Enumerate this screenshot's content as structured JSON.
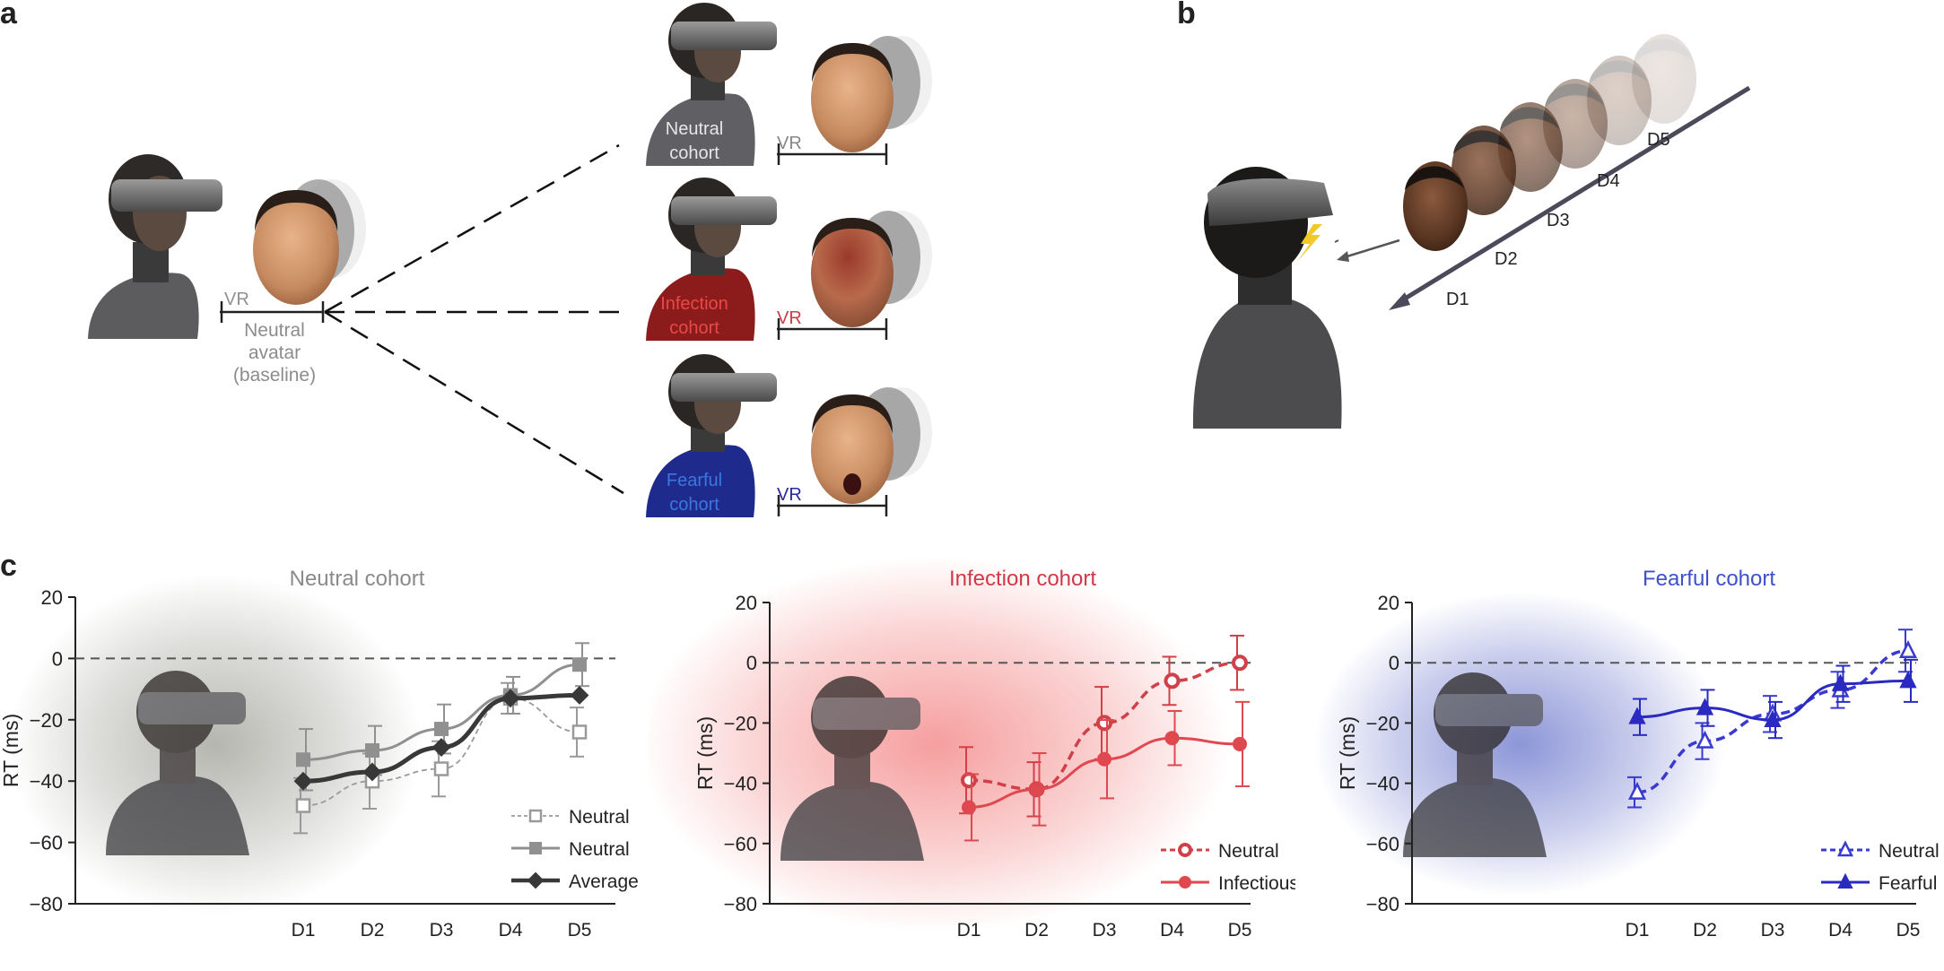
{
  "panels": {
    "a": "a",
    "b": "b",
    "c": "c"
  },
  "panel_a": {
    "baseline_vr": "VR",
    "baseline_caption": [
      "Neutral",
      "avatar",
      "(baseline)"
    ],
    "cohorts": [
      {
        "label": [
          "Neutral",
          "cohort"
        ],
        "vr": "VR",
        "shirt": "#606064",
        "label_color": "#e6e6e6",
        "vr_color": "#888888",
        "face": "neutral"
      },
      {
        "label": [
          "Infection",
          "cohort"
        ],
        "vr": "VR",
        "shirt": "#8c1c1c",
        "label_color": "#e94848",
        "vr_color": "#c8404a",
        "face": "infected"
      },
      {
        "label": [
          "Fearful",
          "cohort"
        ],
        "vr": "VR",
        "shirt": "#1e2a8c",
        "label_color": "#3a78e0",
        "vr_color": "#2a2a9a",
        "face": "fearful"
      }
    ]
  },
  "panel_b": {
    "days": [
      "D1",
      "D2",
      "D3",
      "D4",
      "D5"
    ]
  },
  "chart_data": [
    {
      "type": "line",
      "title": "Neutral cohort",
      "title_color": "#8a8a8a",
      "ylabel": "RT (ms)",
      "ylim": [
        -80,
        20
      ],
      "yticks": [
        20,
        0,
        -20,
        -40,
        -60,
        -80
      ],
      "categories": [
        "D1",
        "D2",
        "D3",
        "D4",
        "D5"
      ],
      "glow_color": "#7a7a70",
      "legend_position": "bottom-right",
      "series": [
        {
          "name": "Neutral",
          "marker": "square-open",
          "style": "dashed-thin",
          "color": "#9a9a9a",
          "values": [
            -48,
            -40,
            -36,
            -13,
            -24
          ],
          "err": [
            9,
            9,
            9,
            5,
            8
          ]
        },
        {
          "name": "Neutral",
          "marker": "square-filled",
          "style": "solid",
          "color": "#909090",
          "values": [
            -33,
            -30,
            -23,
            -12,
            -2
          ],
          "err": [
            10,
            8,
            8,
            6,
            7
          ]
        },
        {
          "name": "Average",
          "marker": "diamond-filled",
          "style": "bold",
          "color": "#383838",
          "values": [
            -40,
            -37,
            -29,
            -13,
            -12
          ],
          "err": [
            0,
            0,
            0,
            0,
            0
          ]
        }
      ]
    },
    {
      "type": "line",
      "title": "Infection cohort",
      "title_color": "#d03a48",
      "ylabel": "RT (ms)",
      "ylim": [
        -80,
        20
      ],
      "yticks": [
        20,
        0,
        -20,
        -40,
        -60,
        -80
      ],
      "categories": [
        "D1",
        "D2",
        "D3",
        "D4",
        "D5"
      ],
      "glow_color": "#ee5050",
      "legend_position": "bottom-right",
      "series": [
        {
          "name": "Neutral",
          "marker": "circle-open",
          "style": "dashed",
          "color": "#d04048",
          "values": [
            -39,
            -42,
            -20,
            -6,
            0
          ],
          "err": [
            11,
            9,
            12,
            8,
            9
          ]
        },
        {
          "name": "Infectious",
          "marker": "circle-filled",
          "style": "solid",
          "color": "#e04850",
          "values": [
            -48,
            -42,
            -32,
            -25,
            -27
          ],
          "err": [
            11,
            12,
            13,
            9,
            14
          ]
        }
      ]
    },
    {
      "type": "line",
      "title": "Fearful cohort",
      "title_color": "#4050c8",
      "ylabel": "RT (ms)",
      "ylim": [
        -80,
        20
      ],
      "yticks": [
        20,
        0,
        -20,
        -40,
        -60,
        -80
      ],
      "categories": [
        "D1",
        "D2",
        "D3",
        "D4",
        "D5"
      ],
      "glow_color": "#3040b8",
      "legend_position": "bottom-right",
      "series": [
        {
          "name": "Neutral",
          "marker": "triangle-open",
          "style": "dashed",
          "color": "#3a3ad0",
          "values": [
            -43,
            -26,
            -17,
            -9,
            4
          ],
          "err": [
            5,
            6,
            6,
            6,
            7
          ]
        },
        {
          "name": "Fearful",
          "marker": "triangle-filled",
          "style": "solid",
          "color": "#2a2ac0",
          "values": [
            -18,
            -15,
            -19,
            -7,
            -6
          ],
          "err": [
            6,
            6,
            6,
            6,
            7
          ]
        }
      ]
    }
  ]
}
